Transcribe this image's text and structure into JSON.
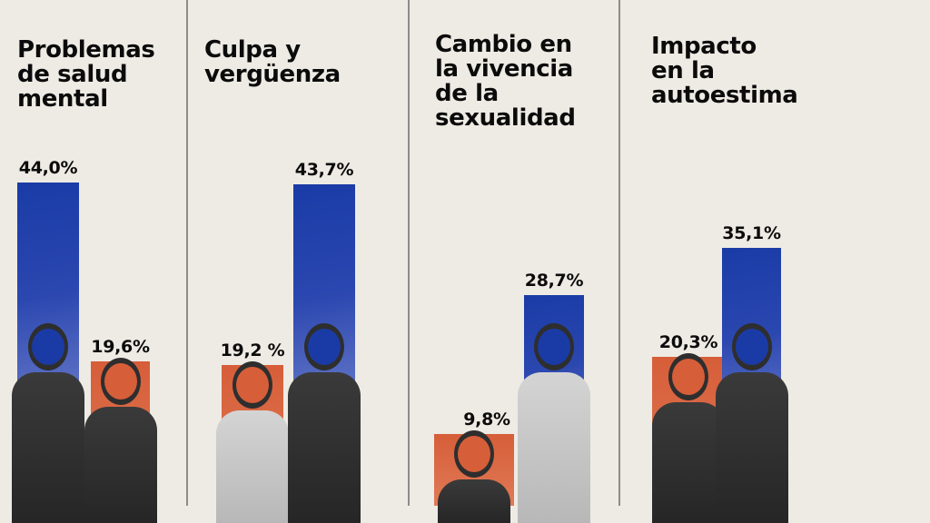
{
  "chart_data": {
    "type": "bar",
    "title": "",
    "categories": [
      "Problemas de salud mental",
      "Culpa y vergüenza",
      "Cambio en la vivencia de la sexualidad",
      "Impacto en la autoestima"
    ],
    "series": [
      {
        "name": "blue",
        "color": "#1a3ba6",
        "values": [
          44.0,
          43.7,
          28.7,
          35.1
        ],
        "labels": [
          "44,0%",
          "43,7%",
          "28,7%",
          "35,1%"
        ]
      },
      {
        "name": "orange",
        "color": "#d65e39",
        "values": [
          19.6,
          19.2,
          9.8,
          20.3
        ],
        "labels": [
          "19,6%",
          "19,2 %",
          "9,8%",
          "20,3%"
        ]
      }
    ],
    "series_order_per_category": [
      [
        "blue",
        "orange"
      ],
      [
        "orange",
        "blue"
      ],
      [
        "orange",
        "blue"
      ],
      [
        "orange",
        "blue"
      ]
    ],
    "xlabel": "",
    "ylabel": "",
    "ylim": [
      0,
      48
    ],
    "grid": false,
    "legend": "none"
  },
  "panels": [
    {
      "title": "Problemas\nde salud\nmental"
    },
    {
      "title": "Culpa y\nvergüenza"
    },
    {
      "title": "Cambio en\nla vivencia\nde la\nsexualidad"
    },
    {
      "title": "Impacto\nen la\nautoestima"
    }
  ],
  "colors": {
    "background": "#eeebe4",
    "blue": "#1a3ba6",
    "orange": "#d65e39",
    "text": "#0b0b0b",
    "divider": "#8c8c8c"
  }
}
